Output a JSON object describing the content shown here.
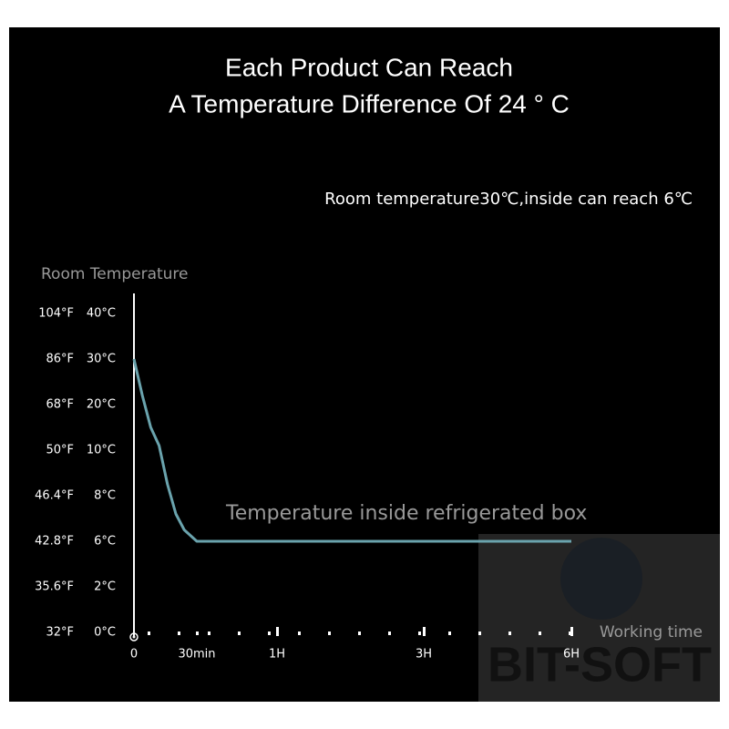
{
  "chart_data": {
    "type": "line",
    "title": "Each Product Can Reach",
    "subtitle": "A Temperature Difference Of 24 ° C",
    "note": "Room temperature30℃,inside can reach 6℃",
    "ylabel": "Room Temperature",
    "xlabel": "Working time",
    "series_label": "Temperature inside refrigerated box",
    "watermark": "BIT-SOFT",
    "x": [
      0,
      4,
      8,
      12,
      16,
      20,
      24,
      30,
      60,
      180,
      360
    ],
    "series": [
      {
        "name": "Temperature inside refrigerated box",
        "color": "#6aa3ad",
        "values": [
          30,
          22,
          15,
          11,
          8.5,
          7.2,
          6.5,
          6,
          6,
          6,
          6
        ]
      }
    ],
    "xlim": [
      0,
      360
    ],
    "xticks": [
      0,
      {
        "value": 30,
        "label": "30min"
      },
      {
        "value": 60,
        "label": "1H"
      },
      {
        "value": 180,
        "label": "3H"
      },
      {
        "value": 360,
        "label": "6H"
      }
    ],
    "ylim": [
      0,
      40
    ],
    "yticks": [
      {
        "value": 40,
        "label": "40°C"
      },
      {
        "value": 30,
        "label": "30°C"
      },
      {
        "value": 20,
        "label": "20°C"
      },
      {
        "value": 10,
        "label": "10°C"
      },
      {
        "value": 8,
        "label": "8°C"
      },
      {
        "value": 6,
        "label": "6°C"
      },
      {
        "value": 2,
        "label": "2°C"
      },
      {
        "value": 0,
        "label": "0°C"
      }
    ],
    "y2lim": [
      32,
      104
    ],
    "y2ticks": [
      {
        "value": 104,
        "label": "104°F"
      },
      {
        "value": 86,
        "label": "86°F"
      },
      {
        "value": 68,
        "label": "68°F"
      },
      {
        "value": 50,
        "label": "50°F"
      },
      {
        "value": 46.4,
        "label": "46.4°F"
      },
      {
        "value": 42.8,
        "label": "42.8°F"
      },
      {
        "value": 35.6,
        "label": "35.6°F"
      },
      {
        "value": 32,
        "label": "32°F"
      }
    ]
  }
}
